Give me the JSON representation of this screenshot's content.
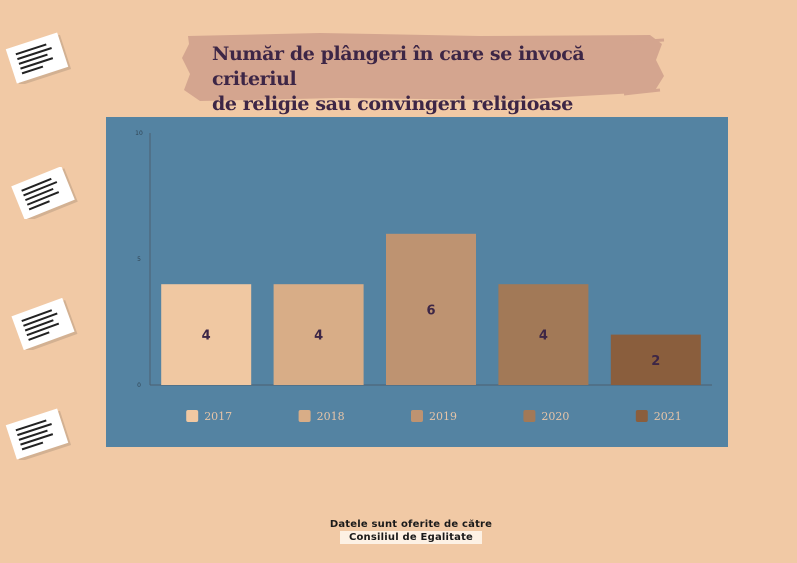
{
  "title_line1": "Număr de plângeri în care se invocă criteriul",
  "title_line2": "de religie sau convingeri religioase",
  "footer": {
    "line1": "Datele sunt oferite de către",
    "line2": "Consiliul de Egalitate"
  },
  "colors": {
    "background": "#f1c9a5",
    "panel": "#5483a2",
    "title_highlight": "#d4a58f",
    "title_text": "#3d2646"
  },
  "icons": [
    "document-icon",
    "document-icon",
    "document-icon",
    "document-icon"
  ],
  "chart_data": {
    "type": "bar",
    "categories": [
      "2017",
      "2018",
      "2019",
      "2020",
      "2021"
    ],
    "values": [
      4,
      4,
      6,
      4,
      2
    ],
    "bar_colors": [
      "#f0c8a2",
      "#d8ad87",
      "#be9371",
      "#a27957",
      "#8a5e3d"
    ],
    "title": "Număr de plângeri în care se invocă criteriul de religie sau convingeri religioase",
    "xlabel": "",
    "ylabel": "",
    "ylim": [
      0,
      10
    ],
    "yticks": [
      "0",
      "5",
      "10"
    ],
    "grid": false,
    "legend": "bottom",
    "data_labels": true
  }
}
